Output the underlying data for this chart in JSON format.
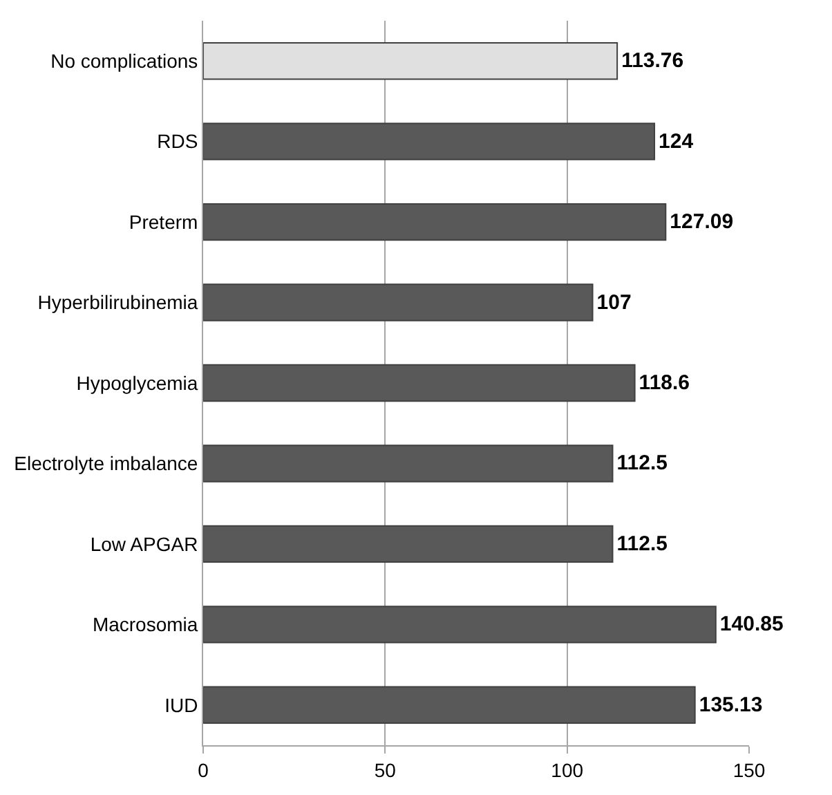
{
  "chart_data": {
    "type": "bar",
    "orientation": "horizontal",
    "categories": [
      "No complications",
      "RDS",
      "Preterm",
      "Hyperbilirubinemia",
      "Hypoglycemia",
      "Electrolyte imbalance",
      "Low APGAR",
      "Macrosomia",
      "IUD"
    ],
    "values": [
      113.76,
      124,
      127.09,
      107,
      118.6,
      112.5,
      112.5,
      140.85,
      135.13
    ],
    "colors": [
      "#e0e0e0",
      "#595959",
      "#595959",
      "#595959",
      "#595959",
      "#595959",
      "#595959",
      "#595959",
      "#595959"
    ],
    "xlim": [
      0,
      150
    ],
    "xticks": [
      0,
      50,
      100,
      150
    ],
    "grid": "x",
    "data_labels": true
  }
}
